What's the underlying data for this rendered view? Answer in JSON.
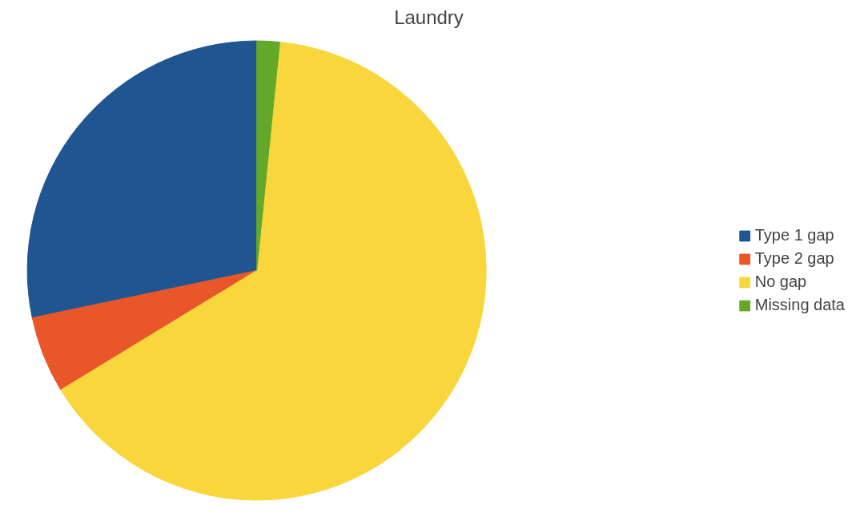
{
  "chart_data": {
    "type": "pie",
    "title": "Laundry",
    "categories": [
      "Type 1 gap",
      "Type 2 gap",
      "No gap",
      "Missing data"
    ],
    "values": [
      28.3,
      5.4,
      64.7,
      1.6
    ],
    "colors": [
      "#1f5591",
      "#e8562a",
      "#f9d63c",
      "#64a82a"
    ],
    "legend": "right"
  }
}
